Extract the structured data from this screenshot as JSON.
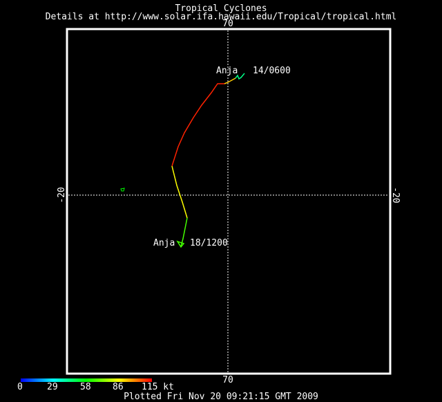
{
  "header": {
    "title": "Tropical Cyclones",
    "subtitle": "Details at http://www.solar.ifa.hawaii.edu/Tropical/tropical.html"
  },
  "map": {
    "lon_label_top": "70",
    "lon_label_bottom": "70",
    "lat_label_left": "-20",
    "lat_label_right": "-20"
  },
  "storm": {
    "name_start": "Anja",
    "time_start": "14/0600",
    "name_end": "Anja",
    "time_end": "18/1200"
  },
  "colorbar": {
    "ticks": [
      "0",
      "29",
      "58",
      "86",
      "115 kt"
    ],
    "colors": [
      "#0000ff",
      "#00ffff",
      "#00ff00",
      "#ffff00",
      "#ff0000"
    ]
  },
  "footer": {
    "plotted": "Plotted Fri Nov 20 09:21:15 GMT 2009"
  }
}
